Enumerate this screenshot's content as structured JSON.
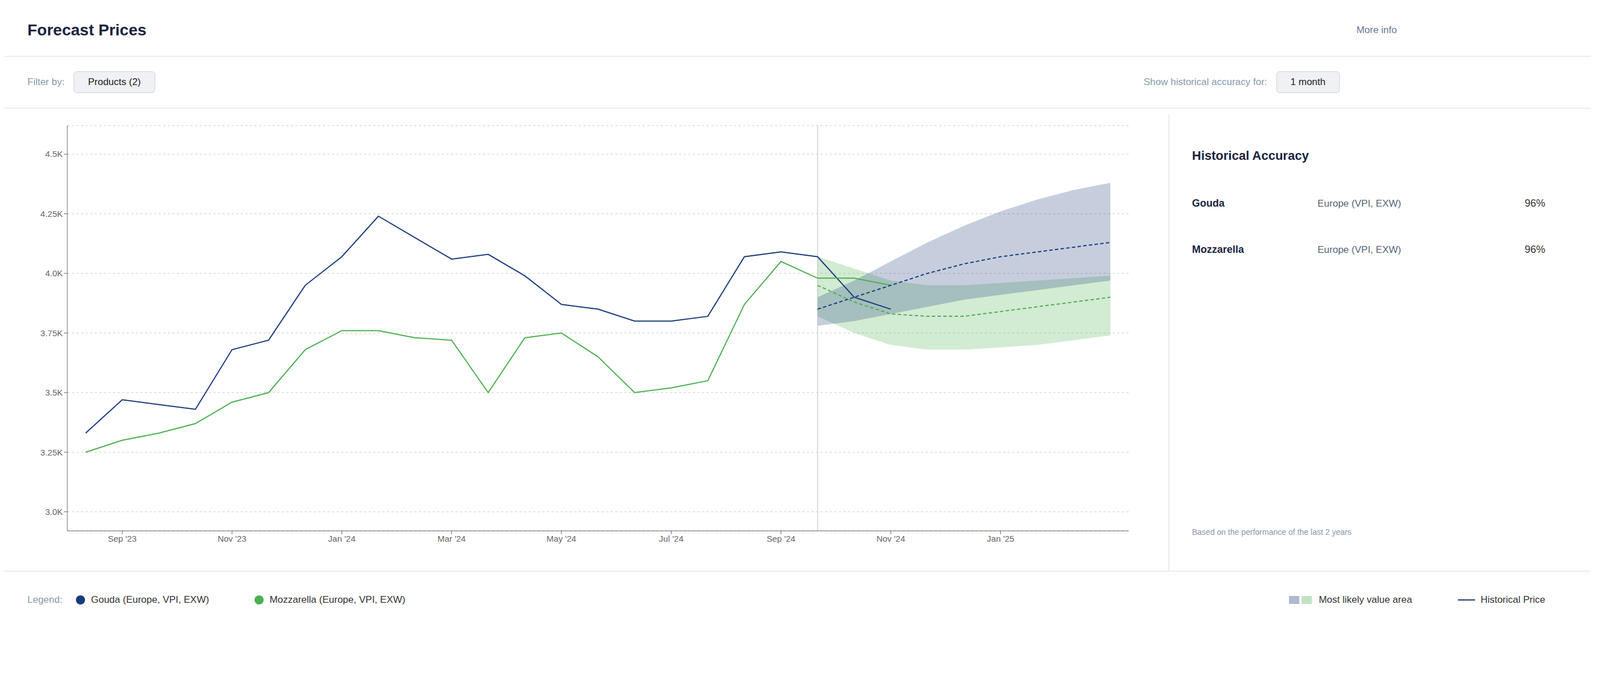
{
  "chart_data": {
    "type": "line",
    "title": "Forecast Prices",
    "x": [
      0,
      28
    ],
    "xlim": [
      -0.5,
      28.5
    ],
    "xticks": [
      {
        "value": 1,
        "label": "Sep '23"
      },
      {
        "value": 4,
        "label": "Nov '23"
      },
      {
        "value": 7,
        "label": "Jan '24"
      },
      {
        "value": 10,
        "label": "Mar '24"
      },
      {
        "value": 13,
        "label": "May '24"
      },
      {
        "value": 16,
        "label": "Jul '24"
      },
      {
        "value": 19,
        "label": "Sep '24"
      },
      {
        "value": 22,
        "label": "Nov '24"
      },
      {
        "value": 25,
        "label": "Jan '25"
      }
    ],
    "ylim": [
      2.92,
      4.62
    ],
    "yticks": [
      {
        "value": 3.0,
        "label": "3.0K"
      },
      {
        "value": 3.25,
        "label": "3.25K"
      },
      {
        "value": 3.5,
        "label": "3.5K"
      },
      {
        "value": 3.75,
        "label": "3.75K"
      },
      {
        "value": 4.0,
        "label": "4.0K"
      },
      {
        "value": 4.25,
        "label": "4.25K"
      },
      {
        "value": 4.5,
        "label": "4.5K"
      }
    ],
    "grid": true,
    "legend": "bottom",
    "forecast_start_x": 20,
    "series": [
      {
        "name": "Gouda (Europe, VPI, EXW)",
        "color": "#1a3a7c",
        "line_style": "solid",
        "x": [
          0,
          1,
          2,
          3,
          4,
          5,
          6,
          7,
          8,
          9,
          10,
          11,
          12,
          13,
          14,
          15,
          16,
          17,
          18,
          19,
          20,
          21,
          22
        ],
        "values": [
          3.33,
          3.47,
          3.45,
          3.43,
          3.68,
          3.72,
          3.95,
          4.07,
          4.24,
          4.15,
          4.06,
          4.08,
          3.99,
          3.87,
          3.85,
          3.8,
          3.8,
          3.82,
          4.07,
          4.09,
          4.07,
          3.9,
          3.85
        ],
        "forecast": {
          "line_style": "dashed",
          "x": [
            20,
            21,
            22,
            23,
            24,
            25,
            26,
            27,
            28
          ],
          "values": [
            3.85,
            3.9,
            3.95,
            4.0,
            4.04,
            4.07,
            4.09,
            4.11,
            4.13
          ],
          "band_upper": [
            3.9,
            3.97,
            4.05,
            4.13,
            4.2,
            4.26,
            4.31,
            4.35,
            4.38
          ],
          "band_lower": [
            3.78,
            3.8,
            3.83,
            3.86,
            3.89,
            3.91,
            3.93,
            3.95,
            3.97
          ]
        }
      },
      {
        "name": "Mozzarella (Europe, VPI, EXW)",
        "color": "#4caf50",
        "line_style": "solid",
        "x": [
          0,
          1,
          2,
          3,
          4,
          5,
          6,
          7,
          8,
          9,
          10,
          11,
          12,
          13,
          14,
          15,
          16,
          17,
          18,
          19,
          20,
          21,
          22
        ],
        "values": [
          3.25,
          3.3,
          3.33,
          3.37,
          3.46,
          3.5,
          3.68,
          3.76,
          3.76,
          3.73,
          3.72,
          3.5,
          3.73,
          3.75,
          3.65,
          3.5,
          3.52,
          3.55,
          3.87,
          4.05,
          3.98,
          3.98,
          3.95
        ],
        "forecast": {
          "line_style": "dashed",
          "x": [
            20,
            21,
            22,
            23,
            24,
            25,
            26,
            27,
            28
          ],
          "values": [
            3.95,
            3.88,
            3.83,
            3.82,
            3.82,
            3.84,
            3.86,
            3.88,
            3.9
          ],
          "band_upper": [
            4.07,
            4.02,
            3.97,
            3.95,
            3.95,
            3.96,
            3.97,
            3.98,
            3.99
          ],
          "band_lower": [
            3.82,
            3.75,
            3.7,
            3.68,
            3.68,
            3.69,
            3.7,
            3.72,
            3.74
          ]
        }
      }
    ],
    "annotations": {
      "more_info": "More info",
      "filter_label": "Filter by:",
      "filter_value": "Products (2)",
      "show_accuracy_label": "Show historical accuracy for:",
      "show_accuracy_value": "1 month",
      "accuracy_title": "Historical Accuracy",
      "accuracy_items": [
        {
          "name": "Gouda",
          "region": "Europe (VPI, EXW)",
          "pct": "96%"
        },
        {
          "name": "Mozzarella",
          "region": "Europe (VPI, EXW)",
          "pct": "96%"
        }
      ],
      "footnote": "Based on the performance of the last 2 years",
      "legend_title": "Legend:",
      "legend_area": "Most likely value area",
      "legend_hist": "Historical Price"
    }
  }
}
